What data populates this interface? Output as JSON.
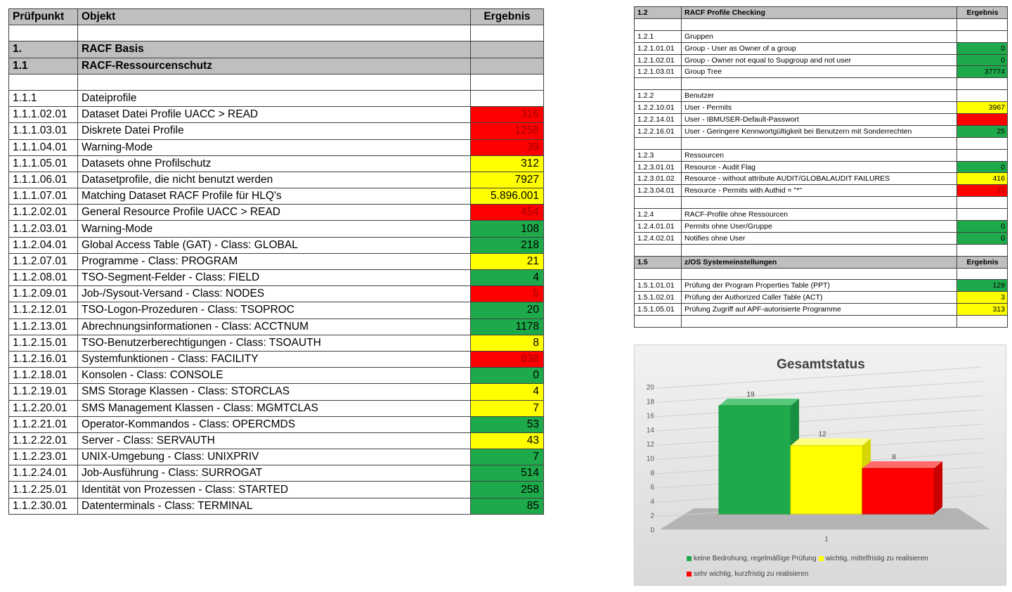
{
  "main_table": {
    "headers": [
      "Prüfpunkt",
      "Objekt",
      "Ergebnis"
    ],
    "rows": [
      {
        "type": "blank",
        "id": "",
        "label": "",
        "value": "",
        "status": ""
      },
      {
        "type": "section",
        "id": "1.",
        "label": "RACF Basis",
        "value": "",
        "status": ""
      },
      {
        "type": "section",
        "id": "1.1",
        "label": "RACF-Ressourcenschutz",
        "value": "",
        "status": ""
      },
      {
        "type": "blank",
        "id": "",
        "label": "",
        "value": "",
        "status": ""
      },
      {
        "type": "group",
        "id": "1.1.1",
        "label": "Dateiprofile",
        "value": "",
        "status": ""
      },
      {
        "type": "item",
        "id": "1.1.1.02.01",
        "label": "Dataset Datei Profile UACC > READ",
        "value": "316",
        "status": "r"
      },
      {
        "type": "item",
        "id": "1.1.1.03.01",
        "label": "Diskrete Datei Profile",
        "value": "1258",
        "status": "r"
      },
      {
        "type": "item",
        "id": "1.1.1.04.01",
        "label": "Warning-Mode",
        "value": "39",
        "status": "r"
      },
      {
        "type": "item",
        "id": "1.1.1.05.01",
        "label": "Datasets ohne Profilschutz",
        "value": "312",
        "status": "y"
      },
      {
        "type": "item",
        "id": "1.1.1.06.01",
        "label": "Datasetprofile, die nicht benutzt werden",
        "value": "7927",
        "status": "y"
      },
      {
        "type": "item",
        "id": "1.1.1.07.01",
        "label": "Matching Dataset RACF Profile für HLQ's",
        "value": "5.896.001",
        "status": "y"
      },
      {
        "type": "item",
        "id": "1.1.2.02.01",
        "label": "General Resource Profile UACC > READ",
        "value": "454",
        "status": "r"
      },
      {
        "type": "item",
        "id": "1.1.2.03.01",
        "label": "Warning-Mode",
        "value": "108",
        "status": "g"
      },
      {
        "type": "item",
        "id": "1.1.2.04.01",
        "label": "Global Access Table (GAT) - Class: GLOBAL",
        "value": "218",
        "status": "g"
      },
      {
        "type": "item",
        "id": "1.1.2.07.01",
        "label": "Programme - Class: PROGRAM",
        "value": "21",
        "status": "y"
      },
      {
        "type": "item",
        "id": "1.1.2.08.01",
        "label": "TSO-Segment-Felder - Class: FIELD",
        "value": "4",
        "status": "g"
      },
      {
        "type": "item",
        "id": "1.1.2.09.01",
        "label": "Job-/Sysout-Versand - Class: NODES",
        "value": "5",
        "status": "r"
      },
      {
        "type": "item",
        "id": "1.1.2.12.01",
        "label": "TSO-Logon-Prozeduren - Class: TSOPROC",
        "value": "20",
        "status": "g"
      },
      {
        "type": "item",
        "id": "1.1.2.13.01",
        "label": "Abrechnungsinformationen - Class: ACCTNUM",
        "value": "1178",
        "status": "g"
      },
      {
        "type": "item",
        "id": "1.1.2.15.01",
        "label": "TSO-Benutzerberechtigungen - Class: TSOAUTH",
        "value": "8",
        "status": "y"
      },
      {
        "type": "item",
        "id": "1.1.2.16.01",
        "label": "Systemfunktionen - Class: FACILITY",
        "value": "838",
        "status": "r"
      },
      {
        "type": "item",
        "id": "1.1.2.18.01",
        "label": "Konsolen - Class: CONSOLE",
        "value": "0",
        "status": "g"
      },
      {
        "type": "item",
        "id": "1.1.2.19.01",
        "label": "SMS Storage Klassen - Class: STORCLAS",
        "value": "4",
        "status": "y"
      },
      {
        "type": "item",
        "id": "1.1.2.20.01",
        "label": "SMS Management Klassen - Class: MGMTCLAS",
        "value": "7",
        "status": "y"
      },
      {
        "type": "item",
        "id": "1.1.2.21.01",
        "label": "Operator-Kommandos - Class: OPERCMDS",
        "value": "53",
        "status": "g"
      },
      {
        "type": "item",
        "id": "1.1.2.22.01",
        "label": "Server - Class: SERVAUTH",
        "value": "43",
        "status": "y"
      },
      {
        "type": "item",
        "id": "1.1.2.23.01",
        "label": "UNIX-Umgebung - Class: UNIXPRIV",
        "value": "7",
        "status": "g"
      },
      {
        "type": "item",
        "id": "1.1.2.24.01",
        "label": "Job-Ausführung - Class: SURROGAT",
        "value": "514",
        "status": "g"
      },
      {
        "type": "item",
        "id": "1.1.2.25.01",
        "label": "Identität von Prozessen - Class: STARTED",
        "value": "258",
        "status": "g"
      },
      {
        "type": "item",
        "id": "1.1.2.30.01",
        "label": "Datenterminals - Class: TERMINAL",
        "value": "85",
        "status": "g"
      }
    ]
  },
  "profile_table": {
    "rows": [
      {
        "type": "header",
        "id": "1.2",
        "label": "RACF Profile Checking",
        "value": "Ergebnis",
        "status": ""
      },
      {
        "type": "blank",
        "id": "",
        "label": "",
        "value": "",
        "status": ""
      },
      {
        "type": "group",
        "id": "1.2.1",
        "label": "Gruppen",
        "value": "",
        "status": ""
      },
      {
        "type": "item",
        "id": "1.2.1.01.01",
        "label": "Group - User as Owner of a group",
        "value": "0",
        "status": "g"
      },
      {
        "type": "item",
        "id": "1.2.1.02.01",
        "label": "Group - Owner not equal to Supgroup and not user",
        "value": "0",
        "status": "g"
      },
      {
        "type": "item",
        "id": "1.2.1.03.01",
        "label": "Group Tree",
        "value": "37774",
        "status": "g"
      },
      {
        "type": "blank",
        "id": "",
        "label": "",
        "value": "",
        "status": ""
      },
      {
        "type": "group",
        "id": "1.2.2",
        "label": "Benutzer",
        "value": "",
        "status": ""
      },
      {
        "type": "item",
        "id": "1.2.2.10.01",
        "label": "User - Permits",
        "value": "3967",
        "status": "y"
      },
      {
        "type": "item",
        "id": "1.2.2.14.01",
        "label": "User - IBMUSER-Default-Passwort",
        "value": "",
        "status": "r"
      },
      {
        "type": "item",
        "id": "1.2.2.16.01",
        "label": "User - Geringere Kennwortgültigkeit bei Benutzern mit Sonderrechten",
        "value": "25",
        "status": "g"
      },
      {
        "type": "blank",
        "id": "",
        "label": "",
        "value": "",
        "status": ""
      },
      {
        "type": "group",
        "id": "1.2.3",
        "label": "Ressourcen",
        "value": "",
        "status": ""
      },
      {
        "type": "item",
        "id": "1.2.3.01.01",
        "label": "Resource - Audit Flag",
        "value": "0",
        "status": "g"
      },
      {
        "type": "item",
        "id": "1.2.3.01.02",
        "label": "Resource - without attribute AUDIT/GLOBALAUDIT FAILURES",
        "value": "416",
        "status": "y"
      },
      {
        "type": "item",
        "id": "1.2.3.04.01",
        "label": "Resource - Permits with Authid = \"*\"",
        "value": "33",
        "status": "r"
      },
      {
        "type": "blank",
        "id": "",
        "label": "",
        "value": "",
        "status": ""
      },
      {
        "type": "group",
        "id": "1.2.4",
        "label": "RACF-Profile ohne Ressourcen",
        "value": "",
        "status": ""
      },
      {
        "type": "item",
        "id": "1.2.4.01.01",
        "label": "Permits ohne User/Gruppe",
        "value": "0",
        "status": "g"
      },
      {
        "type": "item",
        "id": "1.2.4.02.01",
        "label": "Notifies ohne User",
        "value": "0",
        "status": "g"
      },
      {
        "type": "blank",
        "id": "",
        "label": "",
        "value": "",
        "status": ""
      },
      {
        "type": "header",
        "id": "1.5",
        "label": "z/OS Systemeinstellungen",
        "value": "Ergebnis",
        "status": ""
      },
      {
        "type": "blank",
        "id": "",
        "label": "",
        "value": "",
        "status": ""
      },
      {
        "type": "item",
        "id": "1.5.1.01.01",
        "label": "Prüfung der Program Properties Table (PPT)",
        "value": "129",
        "status": "g"
      },
      {
        "type": "item",
        "id": "1.5.1.02.01",
        "label": "Prüfung der Authorized Caller Table (ACT)",
        "value": "3",
        "status": "y"
      },
      {
        "type": "item",
        "id": "1.5.1.05.01",
        "label": "Prüfung Zugriff auf APF-autorisierte Programme",
        "value": "313",
        "status": "y"
      },
      {
        "type": "blank",
        "id": "",
        "label": "",
        "value": "",
        "status": ""
      }
    ]
  },
  "colors": {
    "green": "#1eaa4b",
    "yellow": "#ffff00",
    "red": "#ff0000"
  },
  "chart_data": {
    "type": "bar",
    "title": "Gesamtstatus",
    "categories": [
      "1"
    ],
    "series": [
      {
        "name": "keine Bedrohung, regelmäßige Prüfung",
        "values": [
          19
        ],
        "color": "#1eaa4b"
      },
      {
        "name": "wichtig, mittelfristig zu realisieren",
        "values": [
          12
        ],
        "color": "#ffff00"
      },
      {
        "name": "sehr wichtig, kurzfristig zu realisieren",
        "values": [
          8
        ],
        "color": "#ff0000"
      }
    ],
    "ylim": [
      0,
      20
    ],
    "yticks": [
      0,
      2,
      4,
      6,
      8,
      10,
      12,
      14,
      16,
      18,
      20
    ],
    "xlabel": "",
    "ylabel": "",
    "grid": true,
    "legend_position": "bottom",
    "style": "3d"
  }
}
